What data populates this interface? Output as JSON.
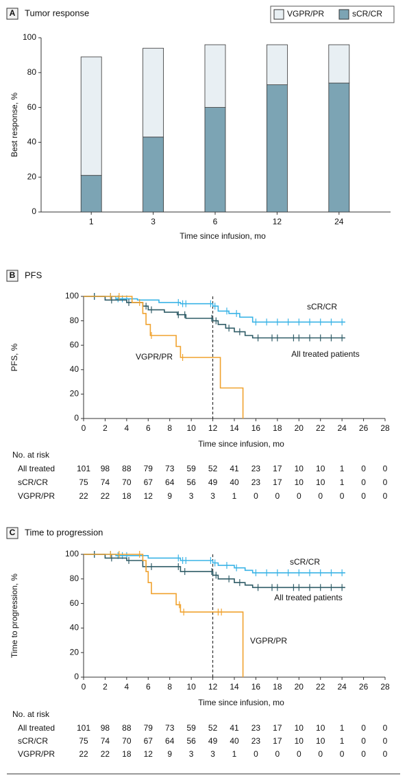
{
  "chart_data": [
    {
      "type": "bar",
      "panel": "A",
      "title": "Tumor response",
      "xlabel": "Time since infusion, mo",
      "ylabel": "Best response, %",
      "categories": [
        "1",
        "3",
        "6",
        "12",
        "24"
      ],
      "series": [
        {
          "name": "sCR/CR",
          "color": "#7ca4b4",
          "values": [
            21,
            43,
            60,
            73,
            74
          ]
        },
        {
          "name": "VGPR/PR",
          "color": "#e8eff3",
          "values": [
            68,
            51,
            36,
            23,
            22
          ]
        }
      ],
      "ylim": [
        0,
        100
      ],
      "yticks": [
        0,
        20,
        40,
        60,
        80,
        100
      ]
    },
    {
      "type": "line",
      "panel": "B",
      "title": "PFS",
      "xlabel": "Time since infusion, mo",
      "ylabel": "PFS, %",
      "series": [
        {
          "name": "sCR/CR",
          "color": "#39b3e6",
          "x": [
            0,
            3,
            3,
            5,
            5,
            7,
            7,
            9,
            9,
            12,
            12,
            12.5,
            12.5,
            13.5,
            13.5,
            14.5,
            14.5,
            15.7,
            15.7,
            24.3
          ],
          "values": [
            100,
            100,
            98,
            98,
            97,
            97,
            95,
            95,
            94,
            94,
            92,
            92,
            88,
            88,
            86,
            86,
            83,
            83,
            79,
            79
          ],
          "censored": [
            1,
            2.5,
            3.2,
            3.6,
            4,
            8.8,
            9.2,
            9.5,
            11.8,
            12.2,
            13.3,
            14.2,
            16,
            17,
            18,
            19,
            20,
            21,
            22,
            23,
            24
          ]
        },
        {
          "name": "All treated patients",
          "color": "#2e5b66",
          "x": [
            0,
            2,
            2,
            4,
            4,
            5.5,
            5.5,
            6,
            6,
            7.5,
            7.5,
            8.7,
            8.7,
            9.5,
            9.5,
            12,
            12,
            12.5,
            12.5,
            13.2,
            13.2,
            14,
            14,
            15,
            15,
            15.7,
            15.7,
            24.3
          ],
          "values": [
            100,
            100,
            97,
            97,
            95,
            95,
            92,
            92,
            89,
            89,
            87,
            87,
            85,
            85,
            82,
            82,
            80,
            80,
            77,
            77,
            74,
            74,
            71,
            71,
            68,
            68,
            66,
            66
          ],
          "censored": [
            1,
            2.6,
            4.2,
            5.8,
            6.3,
            8.8,
            9.4,
            11.9,
            12.3,
            13.5,
            14.5,
            16.2,
            17.5,
            18,
            19.5,
            20,
            21,
            22,
            23,
            24
          ]
        },
        {
          "name": "VGPR/PR",
          "color": "#f0a22e",
          "x": [
            0,
            4.5,
            4.5,
            5.5,
            5.5,
            5.8,
            5.8,
            6.2,
            6.2,
            8.6,
            8.6,
            9,
            9,
            12.7,
            12.7,
            14.8,
            14.8
          ],
          "values": [
            100,
            100,
            95,
            95,
            86,
            86,
            77,
            77,
            68,
            68,
            59,
            59,
            50,
            50,
            25,
            25,
            0
          ],
          "censored": [
            2.5,
            3.3,
            5.2,
            6.3,
            9.2
          ]
        }
      ],
      "reference_x": 12,
      "xlim": [
        0,
        28
      ],
      "xticks": [
        0,
        2,
        4,
        6,
        8,
        10,
        12,
        14,
        16,
        18,
        20,
        22,
        24,
        26,
        28
      ],
      "ylim": [
        0,
        100
      ],
      "yticks": [
        0,
        20,
        40,
        60,
        80,
        100
      ],
      "risk_table": {
        "title": "No. at risk",
        "rows": [
          {
            "label": "All treated",
            "values": [
              101,
              98,
              88,
              79,
              73,
              59,
              52,
              41,
              23,
              17,
              10,
              10,
              1,
              0,
              0
            ]
          },
          {
            "label": "sCR/CR",
            "values": [
              75,
              74,
              70,
              67,
              64,
              56,
              49,
              40,
              23,
              17,
              10,
              10,
              1,
              0,
              0
            ]
          },
          {
            "label": "VGPR/PR",
            "values": [
              22,
              22,
              18,
              12,
              9,
              3,
              3,
              1,
              0,
              0,
              0,
              0,
              0,
              0,
              0
            ]
          }
        ]
      }
    },
    {
      "type": "line",
      "panel": "C",
      "title": "Time to progression",
      "xlabel": "Time since infusion, mo",
      "ylabel": "Time to progression, %",
      "series": [
        {
          "name": "sCR/CR",
          "color": "#39b3e6",
          "x": [
            0,
            3,
            3,
            6,
            6,
            9,
            9,
            12,
            12,
            12.5,
            12.5,
            14,
            14,
            15,
            15,
            15.7,
            15.7,
            24.3
          ],
          "values": [
            100,
            100,
            99,
            99,
            97,
            97,
            95,
            95,
            93,
            93,
            91,
            91,
            89,
            89,
            87,
            87,
            85,
            85
          ],
          "censored": [
            1,
            2.5,
            3.2,
            3.6,
            4,
            8.8,
            9.2,
            9.5,
            11.8,
            12.2,
            13.3,
            14.2,
            16,
            17,
            18,
            19,
            20,
            21,
            22,
            23,
            24
          ]
        },
        {
          "name": "All treated patients",
          "color": "#2e5b66",
          "x": [
            0,
            2,
            2,
            4,
            4,
            5.5,
            5.5,
            9,
            9,
            12,
            12,
            12.5,
            12.5,
            14,
            14,
            15,
            15,
            15.7,
            15.7,
            24.3
          ],
          "values": [
            100,
            100,
            97,
            97,
            95,
            95,
            90,
            90,
            86,
            86,
            83,
            83,
            80,
            80,
            77,
            77,
            75,
            75,
            73,
            73
          ],
          "censored": [
            1,
            2.6,
            4.2,
            5.8,
            6.3,
            8.8,
            9.4,
            11.9,
            12.3,
            13.5,
            14.5,
            16.2,
            17.5,
            18,
            19.5,
            20,
            21,
            22,
            23,
            24
          ]
        },
        {
          "name": "VGPR/PR",
          "color": "#f0a22e",
          "x": [
            0,
            5.5,
            5.5,
            5.8,
            5.8,
            6,
            6,
            6.3,
            6.3,
            8.6,
            8.6,
            9,
            9,
            14.8,
            14.8
          ],
          "values": [
            100,
            100,
            95,
            95,
            86,
            86,
            77,
            77,
            68,
            68,
            59,
            59,
            53,
            53,
            0
          ],
          "censored": [
            2.5,
            3.3,
            5.2,
            8.9,
            9.3,
            12.5,
            12.8
          ]
        }
      ],
      "reference_x": 12,
      "xlim": [
        0,
        28
      ],
      "xticks": [
        0,
        2,
        4,
        6,
        8,
        10,
        12,
        14,
        16,
        18,
        20,
        22,
        24,
        26,
        28
      ],
      "ylim": [
        0,
        100
      ],
      "yticks": [
        0,
        20,
        40,
        60,
        80,
        100
      ],
      "risk_table": {
        "title": "No. at risk",
        "rows": [
          {
            "label": "All treated",
            "values": [
              101,
              98,
              88,
              79,
              73,
              59,
              52,
              41,
              23,
              17,
              10,
              10,
              1,
              0,
              0
            ]
          },
          {
            "label": "sCR/CR",
            "values": [
              75,
              74,
              70,
              67,
              64,
              56,
              49,
              40,
              23,
              17,
              10,
              10,
              1,
              0,
              0
            ]
          },
          {
            "label": "VGPR/PR",
            "values": [
              22,
              22,
              18,
              12,
              9,
              3,
              3,
              1,
              0,
              0,
              0,
              0,
              0,
              0,
              0
            ]
          }
        ]
      }
    }
  ]
}
